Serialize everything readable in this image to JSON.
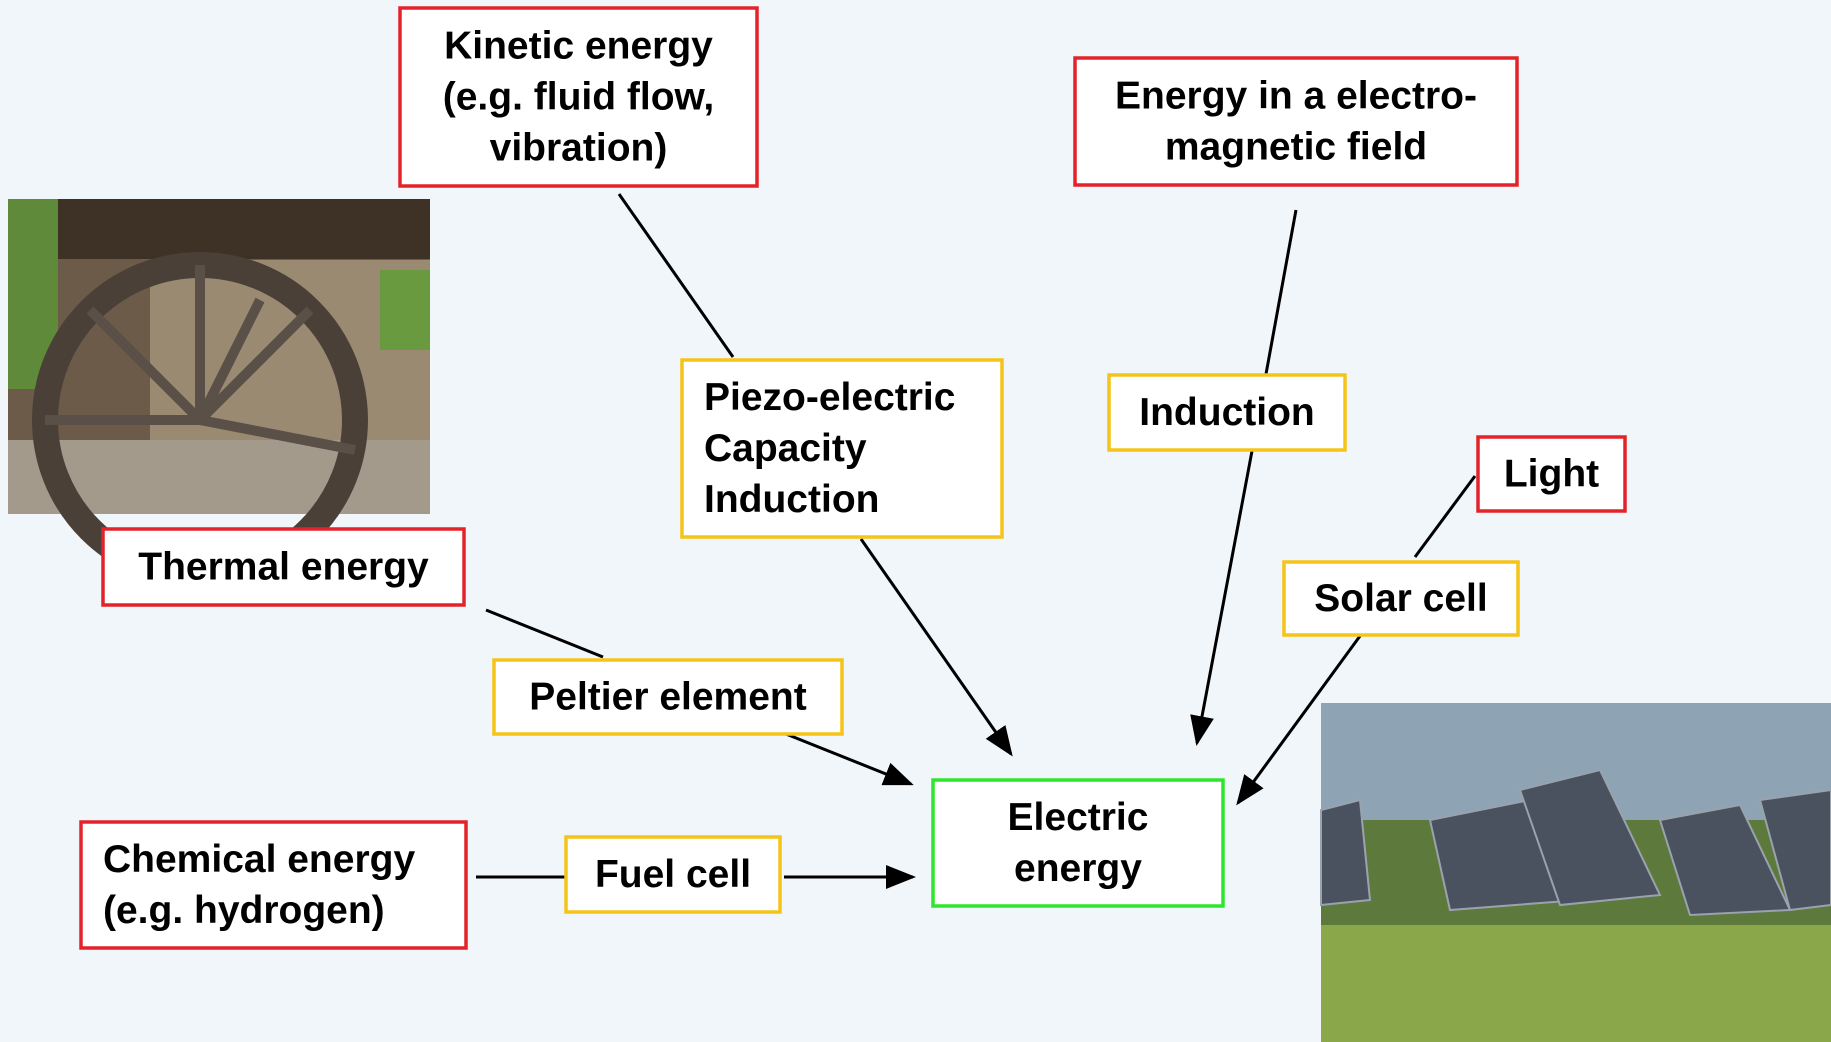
{
  "nodes": [
    {
      "lines": [
        "Kinetic energy",
        "(e.g. fluid flow,",
        "vibration)"
      ]
    },
    {
      "lines": [
        "Energy in a electro-",
        "magnetic field"
      ]
    },
    {
      "lines": [
        "Light"
      ]
    },
    {
      "lines": [
        "Thermal energy"
      ]
    },
    {
      "lines": [
        "Chemical energy",
        "(e.g. hydrogen)"
      ]
    },
    {
      "lines": [
        "Piezo-electric",
        "Capacity",
        "Induction"
      ]
    },
    {
      "lines": [
        "Induction"
      ]
    },
    {
      "lines": [
        "Solar cell"
      ]
    },
    {
      "lines": [
        "Peltier element"
      ]
    },
    {
      "lines": [
        "Fuel cell"
      ]
    },
    {
      "lines": [
        "Electric",
        "energy"
      ]
    }
  ]
}
